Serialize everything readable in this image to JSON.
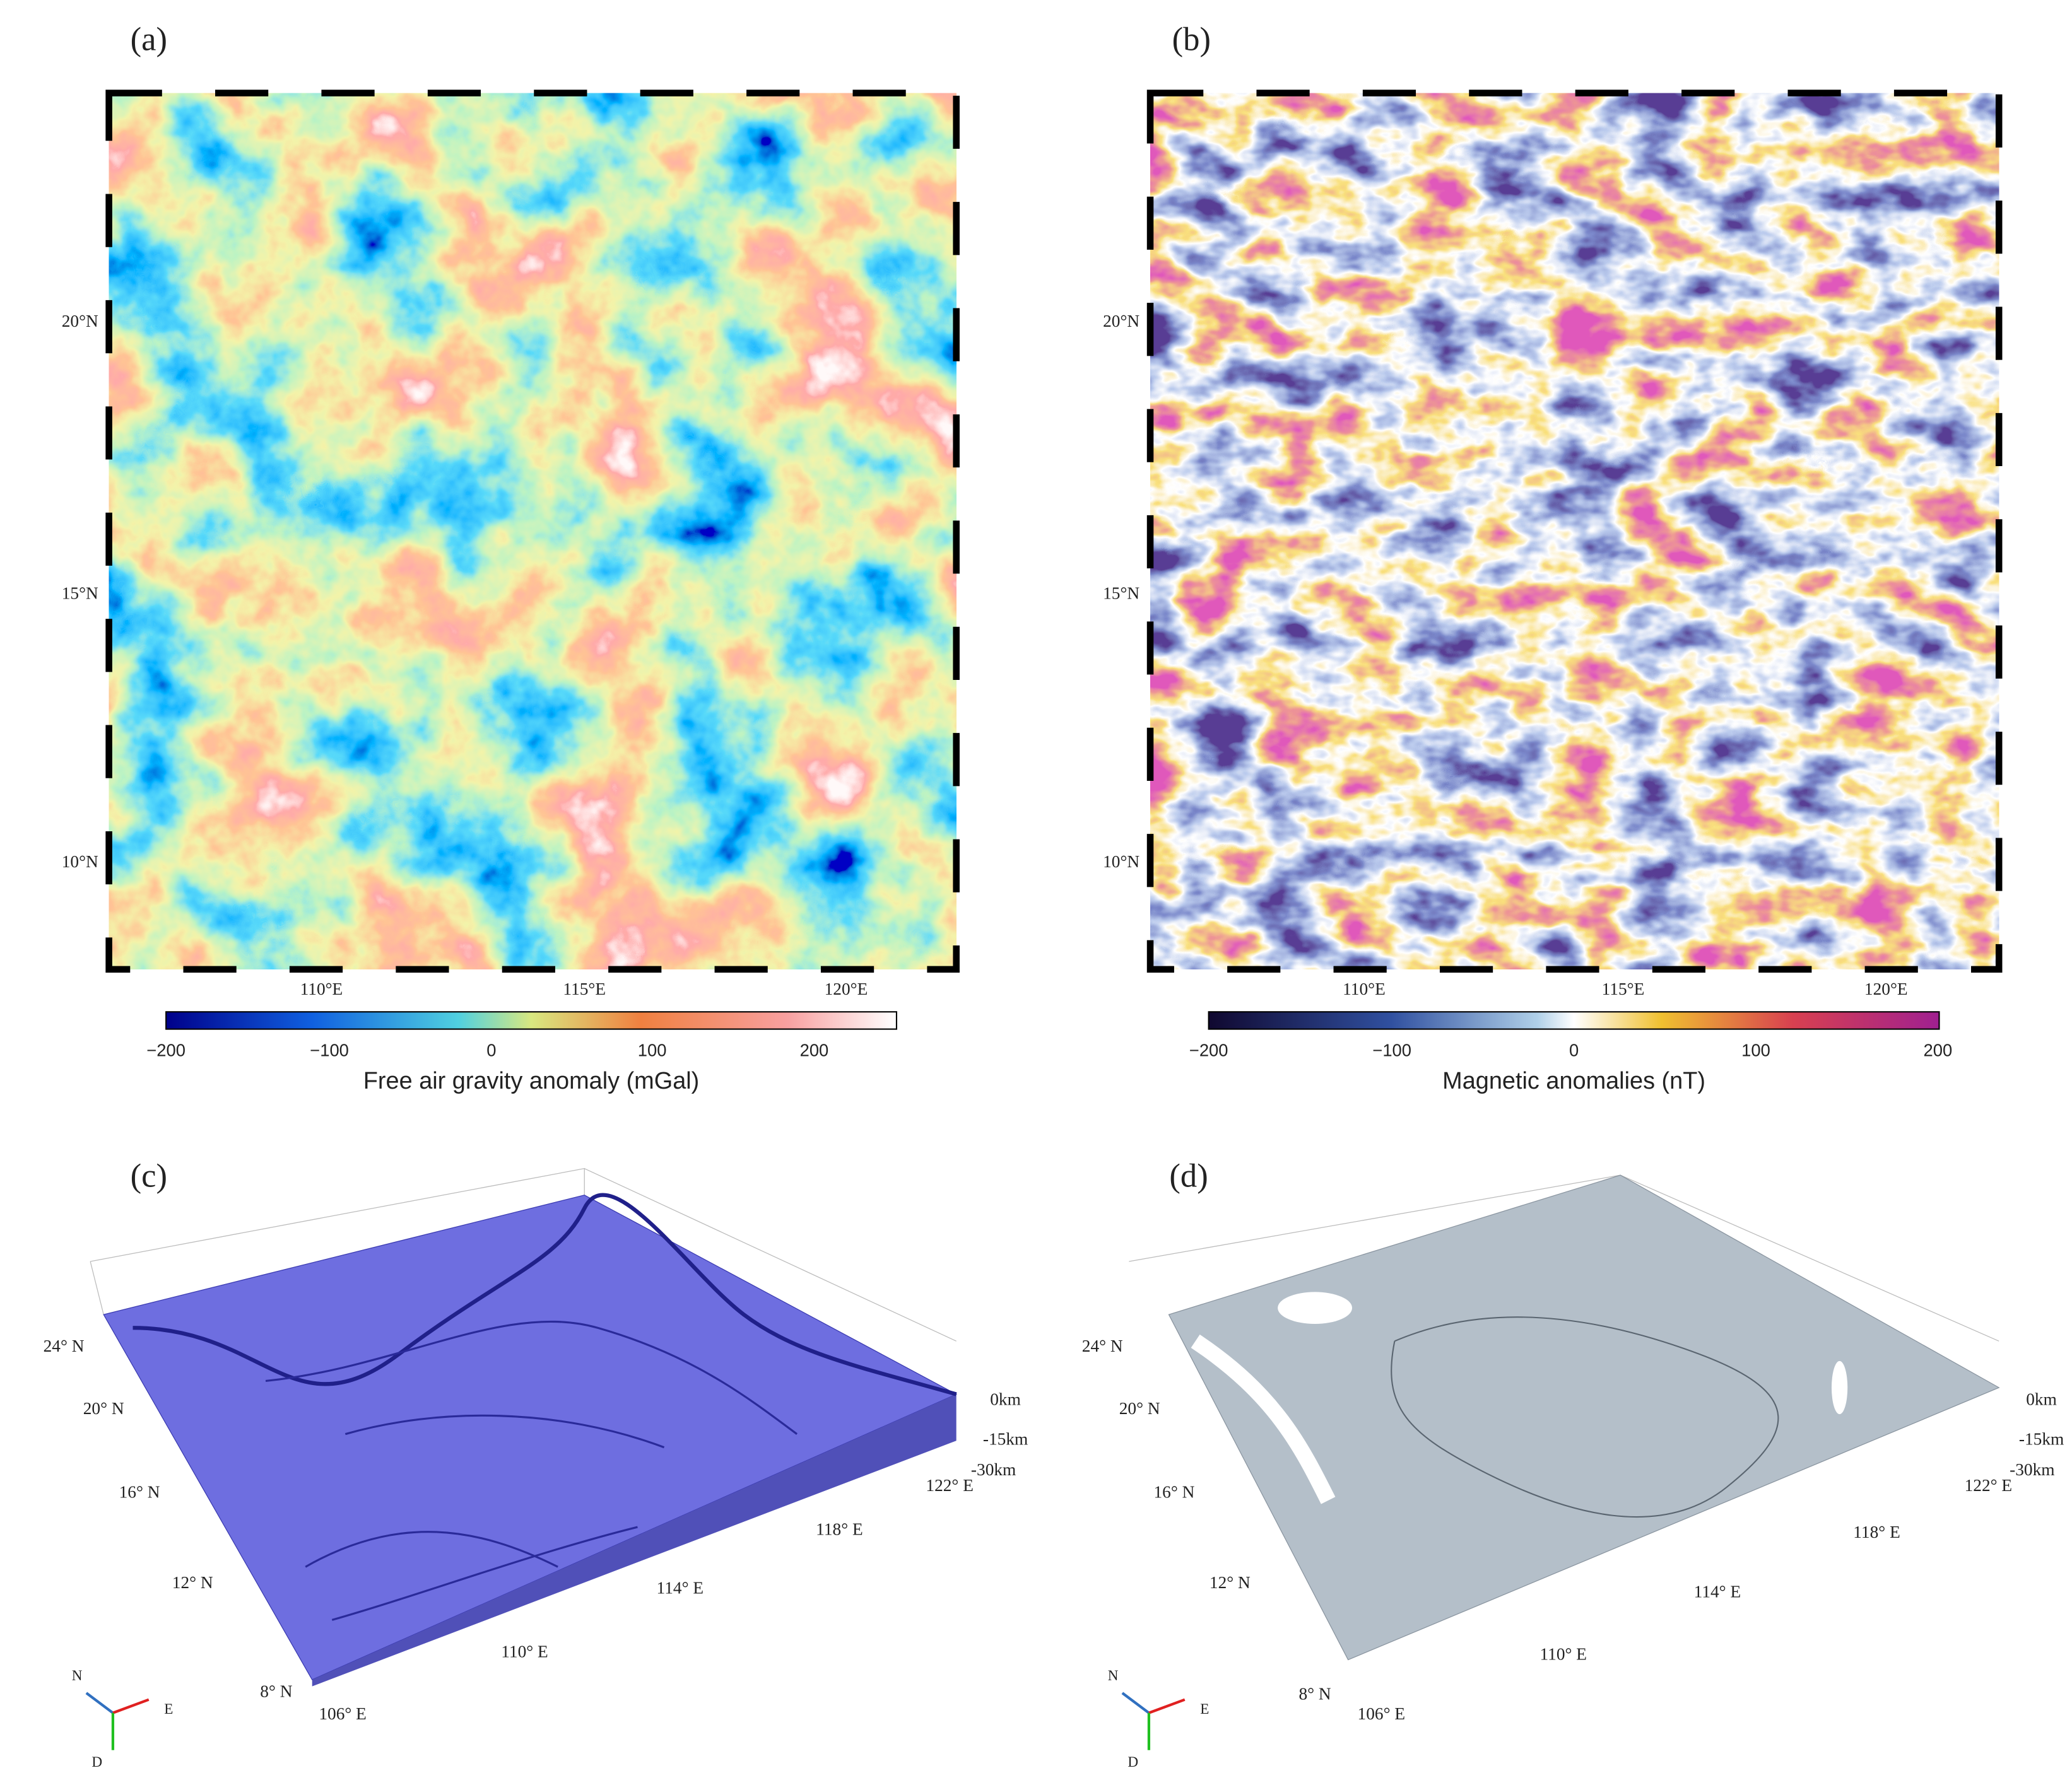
{
  "panels": [
    {
      "label": "(a)",
      "yticks": [
        "20°N",
        "15°N",
        "10°N"
      ],
      "xticks": [
        "110°E",
        "115°E",
        "120°E"
      ],
      "colorbar": {
        "ticks": [
          "−200",
          "−100",
          "0",
          "100",
          "200"
        ],
        "title": "Free air gravity anomaly (mGal)"
      }
    },
    {
      "label": "(b)",
      "yticks": [
        "20°N",
        "15°N",
        "10°N"
      ],
      "xticks": [
        "110°E",
        "115°E",
        "120°E"
      ],
      "colorbar": {
        "ticks": [
          "−200",
          "−100",
          "0",
          "100",
          "200"
        ],
        "title": "Magnetic anomalies (nT)"
      }
    },
    {
      "label": "(c)",
      "lat_labels": [
        "24° N",
        "20° N",
        "16° N",
        "12° N",
        "8° N"
      ],
      "lon_labels": [
        "106° E",
        "110° E",
        "114° E",
        "118° E",
        "122° E"
      ],
      "depth_labels": [
        "0km",
        "-15km",
        "-30km"
      ],
      "compass": [
        "N",
        "E",
        "D"
      ]
    },
    {
      "label": "(d)",
      "lat_labels": [
        "24° N",
        "20° N",
        "16° N",
        "12° N",
        "8° N"
      ],
      "lon_labels": [
        "106° E",
        "110° E",
        "114° E",
        "118° E",
        "122° E"
      ],
      "depth_labels": [
        "0km",
        "-15km",
        "-30km"
      ],
      "compass": [
        "N",
        "E",
        "D"
      ]
    }
  ]
}
